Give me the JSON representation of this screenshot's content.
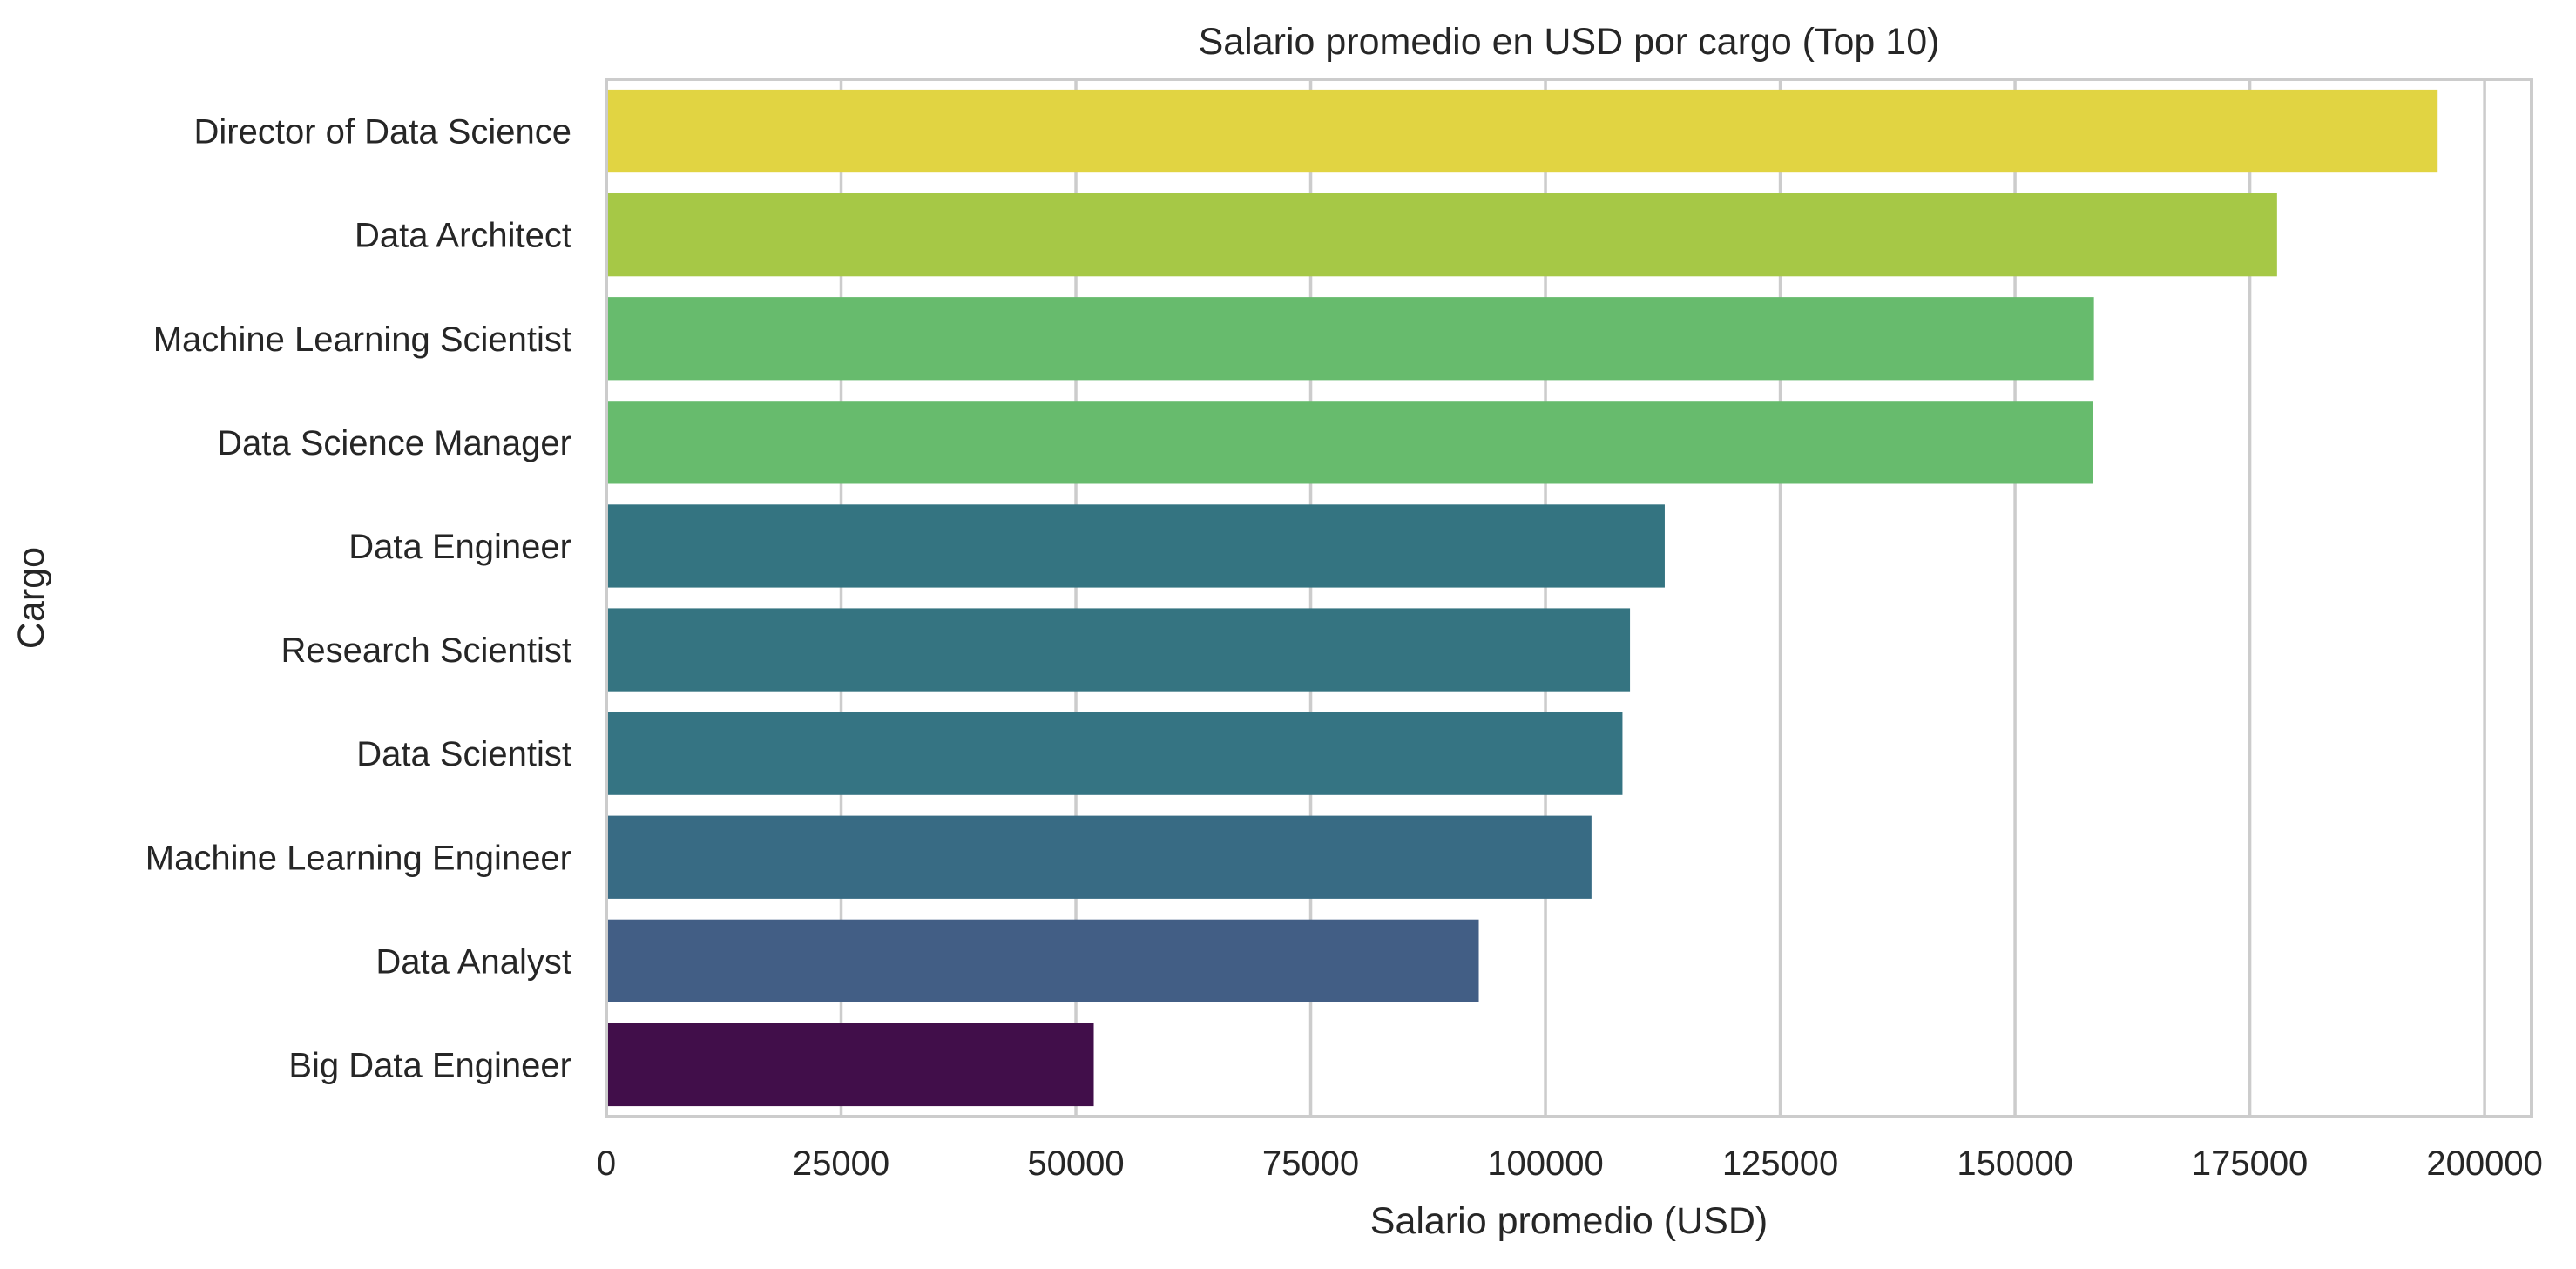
{
  "chart_data": {
    "type": "bar",
    "orientation": "horizontal",
    "title": "Salario promedio en USD por cargo (Top 10)",
    "xlabel": "Salario promedio (USD)",
    "ylabel": "Cargo",
    "xlim": [
      0,
      205000
    ],
    "xticks": [
      0,
      25000,
      50000,
      75000,
      100000,
      125000,
      150000,
      175000,
      200000
    ],
    "grid": true,
    "categories": [
      "Director of Data Science",
      "Data Architect",
      "Machine Learning Scientist",
      "Data Science Manager",
      "Data Engineer",
      "Research Scientist",
      "Data Scientist",
      "Machine Learning Engineer",
      "Data Analyst",
      "Big Data Engineer"
    ],
    "values": [
      195000,
      177900,
      158400,
      158300,
      112700,
      109000,
      108200,
      104900,
      92900,
      51900
    ],
    "colors": [
      "#e1d442",
      "#a6c846",
      "#67bb6d",
      "#67bb6d",
      "#347481",
      "#357481",
      "#357483",
      "#386b84",
      "#425e85",
      "#410e4a"
    ],
    "gridColor": "#cccccc",
    "spineColor": "#cccccc"
  }
}
